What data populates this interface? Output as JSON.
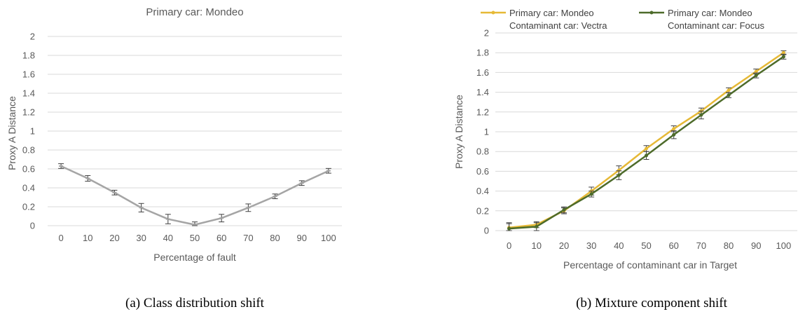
{
  "chart_data": [
    {
      "type": "line",
      "title": "Primary car: Mondeo",
      "xlabel": "Percentage of fault",
      "ylabel": "Proxy A Distance",
      "caption": "(a) Class distribution shift",
      "ylim": [
        0,
        2
      ],
      "yticks": [
        "0",
        "0.2",
        "0.4",
        "0.6",
        "0.8",
        "1",
        "1.2",
        "1.4",
        "1.6",
        "1.8",
        "2"
      ],
      "categories": [
        "0",
        "10",
        "20",
        "30",
        "40",
        "50",
        "60",
        "70",
        "80",
        "90",
        "100"
      ],
      "grid": true,
      "series": [
        {
          "color": "#a5a5a5",
          "marker": "dash",
          "values": [
            0.63,
            0.5,
            0.35,
            0.19,
            0.07,
            0.01,
            0.08,
            0.19,
            0.31,
            0.45,
            0.58
          ],
          "errors": [
            0.025,
            0.03,
            0.025,
            0.045,
            0.05,
            0.03,
            0.04,
            0.04,
            0.025,
            0.025,
            0.025
          ]
        }
      ]
    },
    {
      "type": "line",
      "title": "",
      "xlabel": "Percentage of contaminant car in Target",
      "ylabel": "Proxy A Distance",
      "caption": "(b) Mixture component shift",
      "ylim": [
        0,
        2
      ],
      "yticks": [
        "0",
        "0.2",
        "0.4",
        "0.6",
        "0.8",
        "1",
        "1.2",
        "1.4",
        "1.6",
        "1.8",
        "2"
      ],
      "categories": [
        "0",
        "10",
        "20",
        "30",
        "40",
        "50",
        "60",
        "70",
        "80",
        "90",
        "100"
      ],
      "grid": true,
      "legend": "top",
      "series": [
        {
          "name": "Primary car: Mondeo",
          "name2": "Contaminant car: Vectra",
          "color": "#e6b936",
          "marker": "circle",
          "values": [
            0.03,
            0.06,
            0.2,
            0.4,
            0.61,
            0.83,
            1.03,
            1.21,
            1.42,
            1.61,
            1.8
          ],
          "errors": [
            0.05,
            0.03,
            0.03,
            0.04,
            0.045,
            0.03,
            0.03,
            0.03,
            0.025,
            0.025,
            0.02
          ]
        },
        {
          "name": "Primary car: Mondeo",
          "name2": "Contaminant car: Focus",
          "color": "#4d6b2a",
          "marker": "circle",
          "values": [
            0.02,
            0.04,
            0.21,
            0.37,
            0.56,
            0.76,
            0.97,
            1.17,
            1.37,
            1.57,
            1.76
          ],
          "errors": [
            0.05,
            0.04,
            0.03,
            0.03,
            0.045,
            0.04,
            0.04,
            0.04,
            0.025,
            0.025,
            0.025
          ]
        }
      ]
    }
  ]
}
